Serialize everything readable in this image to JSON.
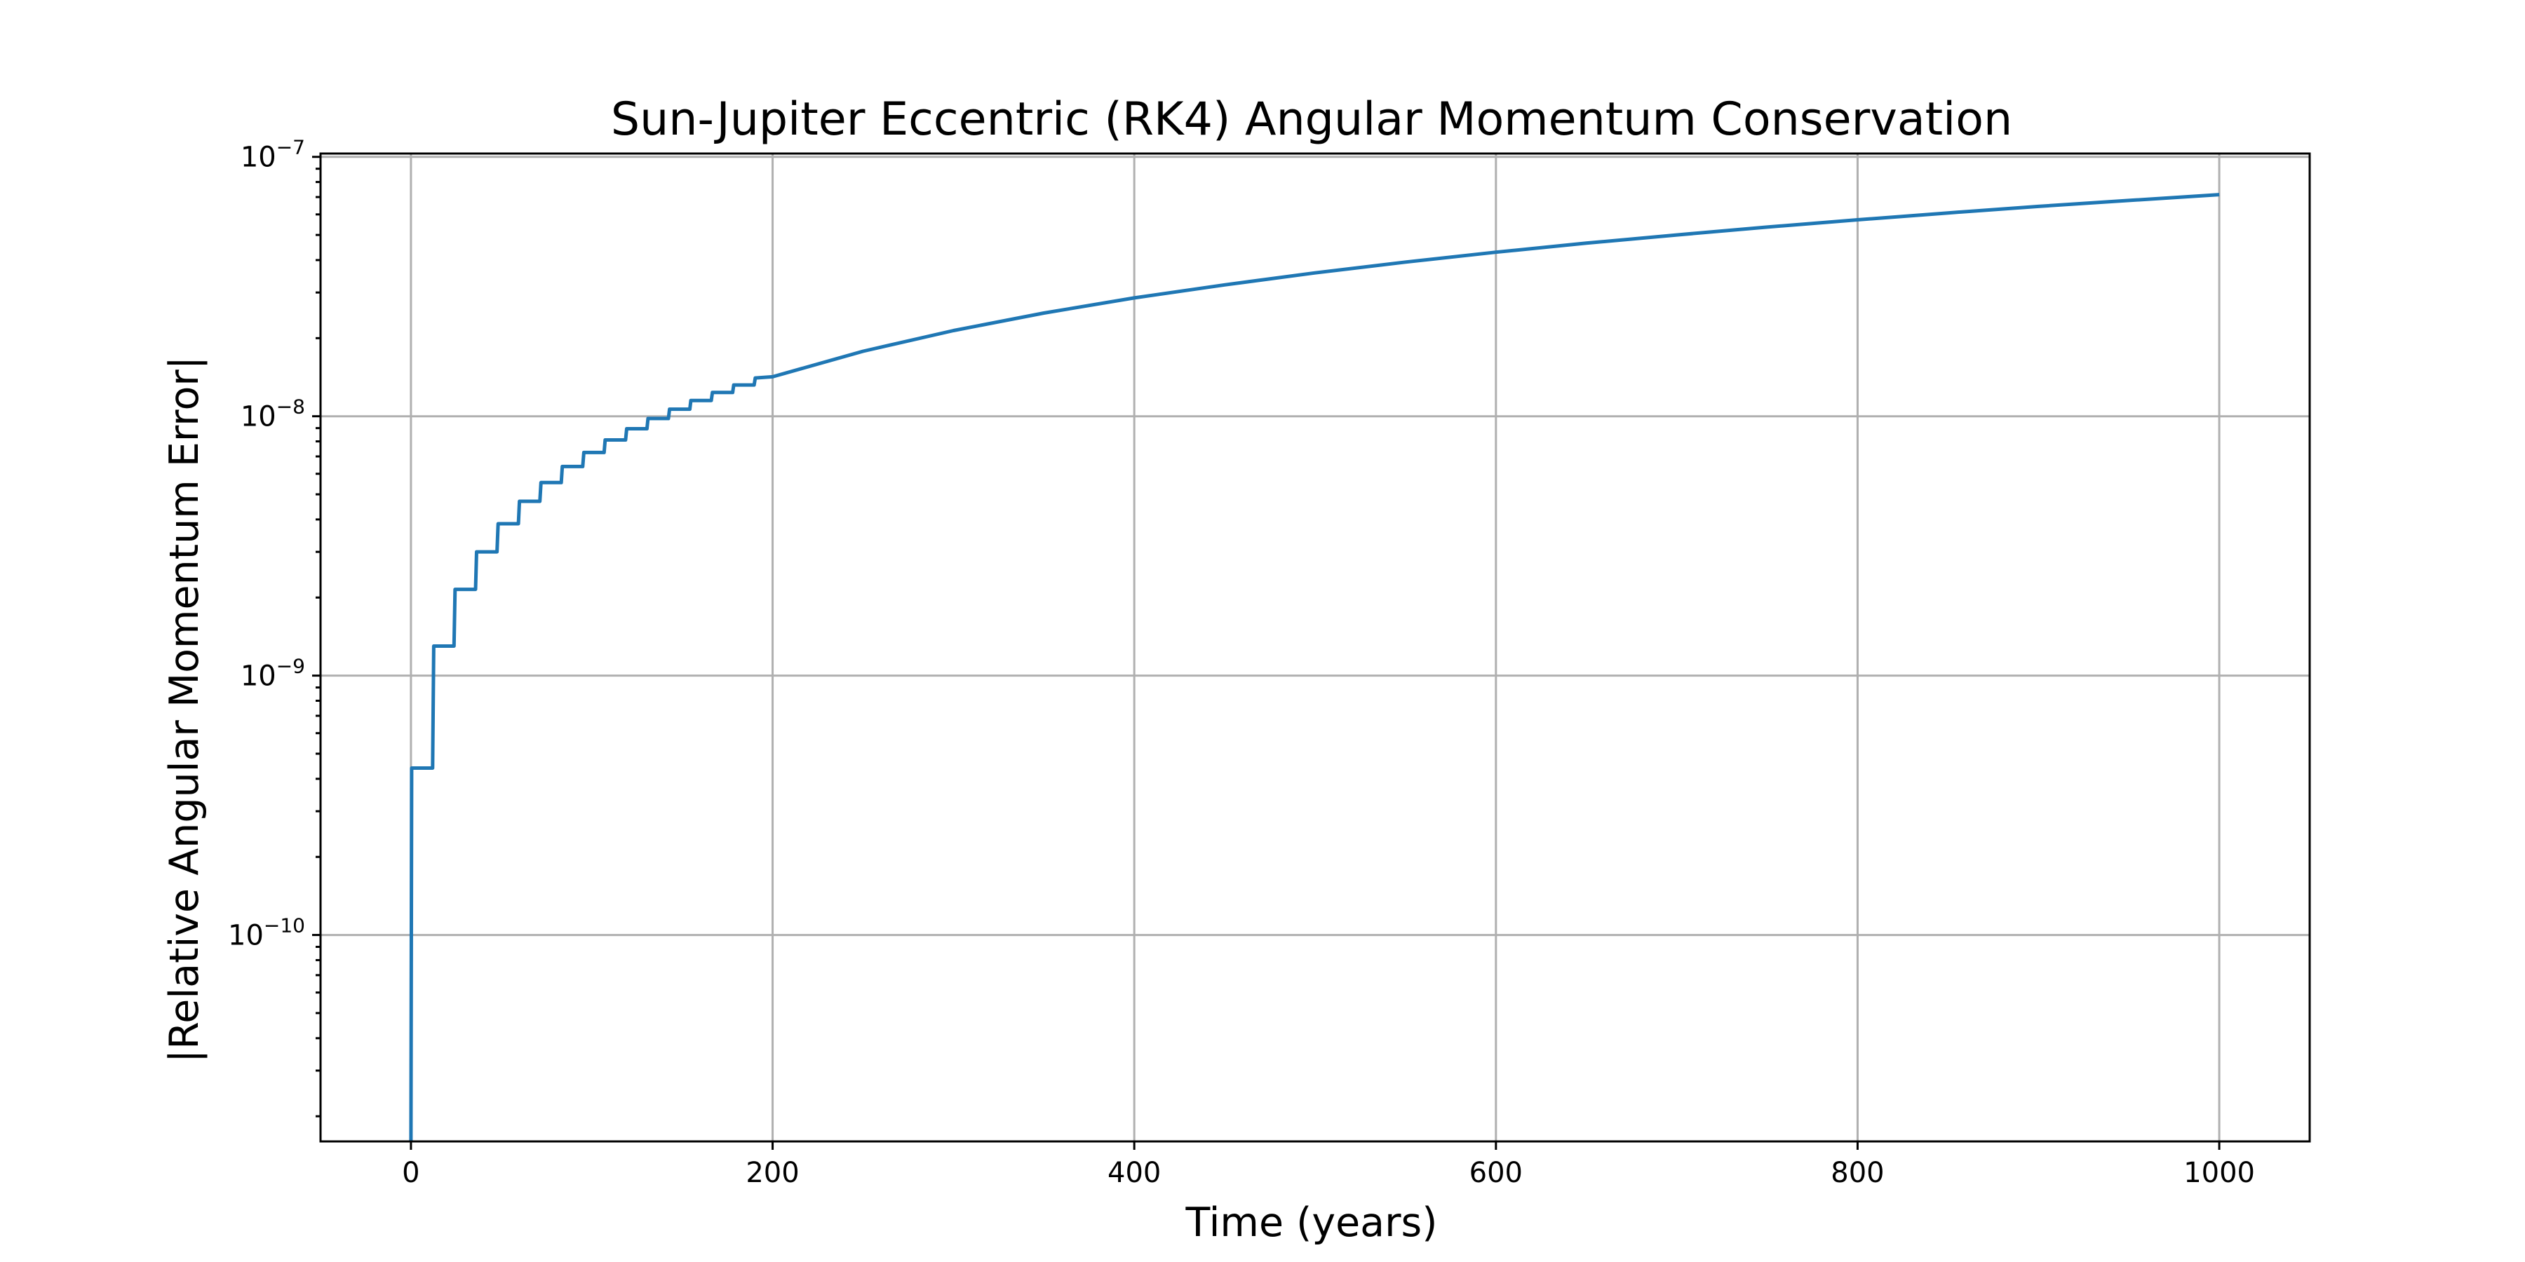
{
  "chart_data": {
    "type": "line",
    "title": "Sun-Jupiter Eccentric (RK4) Angular Momentum Conservation",
    "xlabel": "Time (years)",
    "ylabel": "|Relative Angular Momentum Error|",
    "xlim": [
      -50,
      1050
    ],
    "ylim": [
      1.6e-11,
      1.03e-07
    ],
    "yscale": "log",
    "grid": true,
    "x_ticks": [
      {
        "value": 0,
        "label": "0"
      },
      {
        "value": 200,
        "label": "200"
      },
      {
        "value": 400,
        "label": "400"
      },
      {
        "value": 600,
        "label": "600"
      },
      {
        "value": 800,
        "label": "800"
      },
      {
        "value": 1000,
        "label": "1000"
      }
    ],
    "y_ticks": [
      {
        "value": 1e-07,
        "base": "10",
        "exp": "−7"
      },
      {
        "value": 1e-08,
        "base": "10",
        "exp": "−8"
      },
      {
        "value": 1e-09,
        "base": "10",
        "exp": "−9"
      },
      {
        "value": 1e-10,
        "base": "10",
        "exp": "−10"
      }
    ],
    "series": [
      {
        "color": "#1f77b4",
        "step_period_years": 11.86,
        "points": [
          [
            0,
            1.6e-11
          ],
          [
            0.4,
            4.4e-10
          ],
          [
            12,
            4.4e-10
          ],
          [
            12.6,
            1.3e-09
          ],
          [
            23.8,
            1.3e-09
          ],
          [
            24.4,
            2.15e-09
          ],
          [
            35.7,
            2.15e-09
          ],
          [
            36.3,
            3e-09
          ],
          [
            47.6,
            3e-09
          ],
          [
            48.2,
            3.85e-09
          ],
          [
            59.4,
            3.85e-09
          ],
          [
            60,
            4.7e-09
          ],
          [
            71.3,
            4.7e-09
          ],
          [
            71.9,
            5.55e-09
          ],
          [
            83.1,
            5.55e-09
          ],
          [
            83.7,
            6.4e-09
          ],
          [
            95,
            6.4e-09
          ],
          [
            95.6,
            7.25e-09
          ],
          [
            106.8,
            7.25e-09
          ],
          [
            107.4,
            8.1e-09
          ],
          [
            118.7,
            8.1e-09
          ],
          [
            119.3,
            8.95e-09
          ],
          [
            130.5,
            8.95e-09
          ],
          [
            131.1,
            9.8e-09
          ],
          [
            142.4,
            9.8e-09
          ],
          [
            143,
            1.065e-08
          ],
          [
            154.2,
            1.065e-08
          ],
          [
            154.8,
            1.15e-08
          ],
          [
            166.1,
            1.15e-08
          ],
          [
            166.7,
            1.235e-08
          ],
          [
            177.9,
            1.235e-08
          ],
          [
            178.5,
            1.32e-08
          ],
          [
            189.8,
            1.32e-08
          ],
          [
            190.4,
            1.405e-08
          ],
          [
            200,
            1.42e-08
          ],
          [
            250,
            1.78e-08
          ],
          [
            300,
            2.14e-08
          ],
          [
            350,
            2.5e-08
          ],
          [
            400,
            2.86e-08
          ],
          [
            450,
            3.21e-08
          ],
          [
            500,
            3.57e-08
          ],
          [
            550,
            3.93e-08
          ],
          [
            600,
            4.29e-08
          ],
          [
            650,
            4.65e-08
          ],
          [
            700,
            5e-08
          ],
          [
            750,
            5.36e-08
          ],
          [
            800,
            5.72e-08
          ],
          [
            850,
            6.08e-08
          ],
          [
            900,
            6.44e-08
          ],
          [
            950,
            6.79e-08
          ],
          [
            1000,
            7.15e-08
          ]
        ]
      }
    ]
  }
}
